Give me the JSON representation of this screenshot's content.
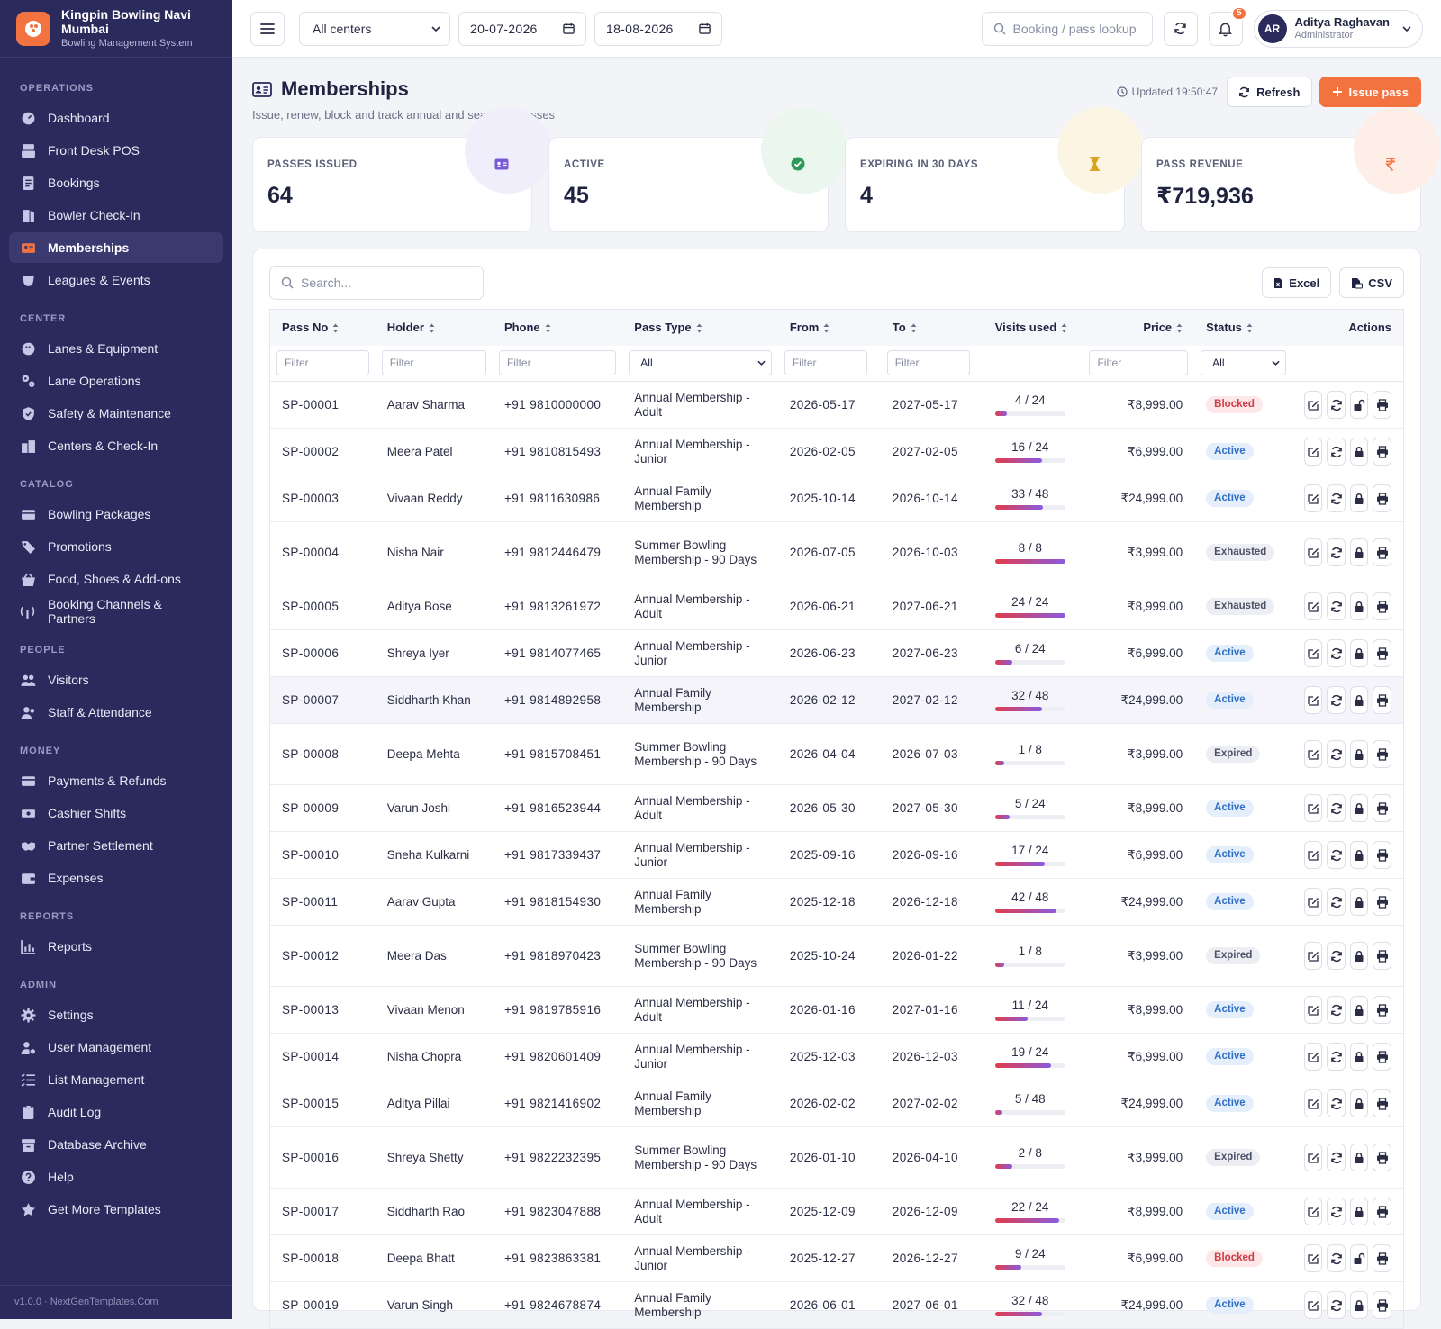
{
  "brand": {
    "name": "Kingpin Bowling Navi Mumbai",
    "subtitle": "Bowling Management System"
  },
  "sidebar": {
    "sections": [
      {
        "title": "OPERATIONS",
        "items": [
          {
            "label": "Dashboard",
            "icon": "dashboard-icon"
          },
          {
            "label": "Front Desk POS",
            "icon": "pos-icon"
          },
          {
            "label": "Bookings",
            "icon": "bookings-icon"
          },
          {
            "label": "Bowler Check-In",
            "icon": "checkin-icon"
          },
          {
            "label": "Memberships",
            "icon": "membership-icon",
            "active": true
          },
          {
            "label": "Leagues & Events",
            "icon": "leagues-icon"
          }
        ]
      },
      {
        "title": "CENTER",
        "items": [
          {
            "label": "Lanes & Equipment",
            "icon": "lanes-icon"
          },
          {
            "label": "Lane Operations",
            "icon": "gears-icon"
          },
          {
            "label": "Safety & Maintenance",
            "icon": "shield-icon"
          },
          {
            "label": "Centers & Check-In",
            "icon": "centers-icon"
          }
        ]
      },
      {
        "title": "CATALOG",
        "items": [
          {
            "label": "Bowling Packages",
            "icon": "packages-icon"
          },
          {
            "label": "Promotions",
            "icon": "tag-icon"
          },
          {
            "label": "Food, Shoes & Add-ons",
            "icon": "basket-icon"
          },
          {
            "label": "Booking Channels & Partners",
            "icon": "broadcast-icon"
          }
        ]
      },
      {
        "title": "PEOPLE",
        "items": [
          {
            "label": "Visitors",
            "icon": "visitors-icon"
          },
          {
            "label": "Staff & Attendance",
            "icon": "staff-icon"
          }
        ]
      },
      {
        "title": "MONEY",
        "items": [
          {
            "label": "Payments & Refunds",
            "icon": "card-icon"
          },
          {
            "label": "Cashier Shifts",
            "icon": "cash-icon"
          },
          {
            "label": "Partner Settlement",
            "icon": "handshake-icon"
          },
          {
            "label": "Expenses",
            "icon": "wallet-icon"
          }
        ]
      },
      {
        "title": "REPORTS",
        "items": [
          {
            "label": "Reports",
            "icon": "chart-icon"
          }
        ]
      },
      {
        "title": "ADMIN",
        "items": [
          {
            "label": "Settings",
            "icon": "gear-icon"
          },
          {
            "label": "User Management",
            "icon": "user-gear-icon"
          },
          {
            "label": "List Management",
            "icon": "list-icon"
          },
          {
            "label": "Audit Log",
            "icon": "clipboard-icon"
          },
          {
            "label": "Database Archive",
            "icon": "archive-icon"
          },
          {
            "label": "Help",
            "icon": "help-icon"
          },
          {
            "label": "Get More Templates",
            "icon": "star-icon"
          }
        ]
      }
    ],
    "footer": "v1.0.0 · NextGenTemplates.Com"
  },
  "topbar": {
    "center_select": "All centers",
    "date_from": "20-07-2026",
    "date_to": "18-08-2026",
    "search_placeholder": "Booking / pass lookup",
    "notifications_count": "5",
    "user": {
      "initials": "AR",
      "name": "Aditya Raghavan",
      "role": "Administrator"
    }
  },
  "page": {
    "title": "Memberships",
    "subtitle": "Issue, renew, block and track annual and seasonal passes",
    "updated": "Updated 19:50:47",
    "refresh_label": "Refresh",
    "issue_label": "Issue pass"
  },
  "stats": [
    {
      "label": "PASSES ISSUED",
      "value": "64",
      "icon": "id-card-icon",
      "color": "#7a5bd6",
      "tint": "#f1eefb"
    },
    {
      "label": "ACTIVE",
      "value": "45",
      "icon": "check-circle-icon",
      "color": "#2e9a57",
      "tint": "#ebf6ef"
    },
    {
      "label": "EXPIRING IN 30 DAYS",
      "value": "4",
      "icon": "hourglass-icon",
      "color": "#d9a320",
      "tint": "#fcf5e4"
    },
    {
      "label": "PASS REVENUE",
      "value": "₹719,936",
      "icon": "rupee-icon",
      "color": "#f27240",
      "tint": "#fdefe8"
    }
  ],
  "table": {
    "search_placeholder": "Search...",
    "excel_label": "Excel",
    "csv_label": "CSV",
    "columns": [
      "Pass No",
      "Holder",
      "Phone",
      "Pass Type",
      "From",
      "To",
      "Visits used",
      "Price",
      "Status",
      "Actions"
    ],
    "filter_placeholder": "Filter",
    "select_all": "All",
    "rows": [
      {
        "pass": "SP-00001",
        "holder": "Aarav Sharma",
        "phone": "+91 9810000000",
        "type": "Annual Membership - Adult",
        "from": "2026-05-17",
        "to": "2027-05-17",
        "visits": "4 / 24",
        "used": 4,
        "total": 24,
        "price": "₹8,999.00",
        "status": "Blocked"
      },
      {
        "pass": "SP-00002",
        "holder": "Meera Patel",
        "phone": "+91 9810815493",
        "type": "Annual Membership - Junior",
        "from": "2026-02-05",
        "to": "2027-02-05",
        "visits": "16 / 24",
        "used": 16,
        "total": 24,
        "price": "₹6,999.00",
        "status": "Active"
      },
      {
        "pass": "SP-00003",
        "holder": "Vivaan Reddy",
        "phone": "+91 9811630986",
        "type": "Annual Family Membership",
        "from": "2025-10-14",
        "to": "2026-10-14",
        "visits": "33 / 48",
        "used": 33,
        "total": 48,
        "price": "₹24,999.00",
        "status": "Active"
      },
      {
        "pass": "SP-00004",
        "holder": "Nisha Nair",
        "phone": "+91 9812446479",
        "type": "Summer Bowling Membership - 90 Days",
        "from": "2026-07-05",
        "to": "2026-10-03",
        "visits": "8 / 8",
        "used": 8,
        "total": 8,
        "price": "₹3,999.00",
        "status": "Exhausted"
      },
      {
        "pass": "SP-00005",
        "holder": "Aditya Bose",
        "phone": "+91 9813261972",
        "type": "Annual Membership - Adult",
        "from": "2026-06-21",
        "to": "2027-06-21",
        "visits": "24 / 24",
        "used": 24,
        "total": 24,
        "price": "₹8,999.00",
        "status": "Exhausted"
      },
      {
        "pass": "SP-00006",
        "holder": "Shreya Iyer",
        "phone": "+91 9814077465",
        "type": "Annual Membership - Junior",
        "from": "2026-06-23",
        "to": "2027-06-23",
        "visits": "6 / 24",
        "used": 6,
        "total": 24,
        "price": "₹6,999.00",
        "status": "Active"
      },
      {
        "pass": "SP-00007",
        "holder": "Siddharth Khan",
        "phone": "+91 9814892958",
        "type": "Annual Family Membership",
        "from": "2026-02-12",
        "to": "2027-02-12",
        "visits": "32 / 48",
        "used": 32,
        "total": 48,
        "price": "₹24,999.00",
        "status": "Active",
        "highlight": true
      },
      {
        "pass": "SP-00008",
        "holder": "Deepa Mehta",
        "phone": "+91 9815708451",
        "type": "Summer Bowling Membership - 90 Days",
        "from": "2026-04-04",
        "to": "2026-07-03",
        "visits": "1 / 8",
        "used": 1,
        "total": 8,
        "price": "₹3,999.00",
        "status": "Expired"
      },
      {
        "pass": "SP-00009",
        "holder": "Varun Joshi",
        "phone": "+91 9816523944",
        "type": "Annual Membership - Adult",
        "from": "2026-05-30",
        "to": "2027-05-30",
        "visits": "5 / 24",
        "used": 5,
        "total": 24,
        "price": "₹8,999.00",
        "status": "Active"
      },
      {
        "pass": "SP-00010",
        "holder": "Sneha Kulkarni",
        "phone": "+91 9817339437",
        "type": "Annual Membership - Junior",
        "from": "2025-09-16",
        "to": "2026-09-16",
        "visits": "17 / 24",
        "used": 17,
        "total": 24,
        "price": "₹6,999.00",
        "status": "Active"
      },
      {
        "pass": "SP-00011",
        "holder": "Aarav Gupta",
        "phone": "+91 9818154930",
        "type": "Annual Family Membership",
        "from": "2025-12-18",
        "to": "2026-12-18",
        "visits": "42 / 48",
        "used": 42,
        "total": 48,
        "price": "₹24,999.00",
        "status": "Active"
      },
      {
        "pass": "SP-00012",
        "holder": "Meera Das",
        "phone": "+91 9818970423",
        "type": "Summer Bowling Membership - 90 Days",
        "from": "2025-10-24",
        "to": "2026-01-22",
        "visits": "1 / 8",
        "used": 1,
        "total": 8,
        "price": "₹3,999.00",
        "status": "Expired"
      },
      {
        "pass": "SP-00013",
        "holder": "Vivaan Menon",
        "phone": "+91 9819785916",
        "type": "Annual Membership - Adult",
        "from": "2026-01-16",
        "to": "2027-01-16",
        "visits": "11 / 24",
        "used": 11,
        "total": 24,
        "price": "₹8,999.00",
        "status": "Active"
      },
      {
        "pass": "SP-00014",
        "holder": "Nisha Chopra",
        "phone": "+91 9820601409",
        "type": "Annual Membership - Junior",
        "from": "2025-12-03",
        "to": "2026-12-03",
        "visits": "19 / 24",
        "used": 19,
        "total": 24,
        "price": "₹6,999.00",
        "status": "Active"
      },
      {
        "pass": "SP-00015",
        "holder": "Aditya Pillai",
        "phone": "+91 9821416902",
        "type": "Annual Family Membership",
        "from": "2026-02-02",
        "to": "2027-02-02",
        "visits": "5 / 48",
        "used": 5,
        "total": 48,
        "price": "₹24,999.00",
        "status": "Active"
      },
      {
        "pass": "SP-00016",
        "holder": "Shreya Shetty",
        "phone": "+91 9822232395",
        "type": "Summer Bowling Membership - 90 Days",
        "from": "2026-01-10",
        "to": "2026-04-10",
        "visits": "2 / 8",
        "used": 2,
        "total": 8,
        "price": "₹3,999.00",
        "status": "Expired"
      },
      {
        "pass": "SP-00017",
        "holder": "Siddharth Rao",
        "phone": "+91 9823047888",
        "type": "Annual Membership - Adult",
        "from": "2025-12-09",
        "to": "2026-12-09",
        "visits": "22 / 24",
        "used": 22,
        "total": 24,
        "price": "₹8,999.00",
        "status": "Active"
      },
      {
        "pass": "SP-00018",
        "holder": "Deepa Bhatt",
        "phone": "+91 9823863381",
        "type": "Annual Membership - Junior",
        "from": "2025-12-27",
        "to": "2026-12-27",
        "visits": "9 / 24",
        "used": 9,
        "total": 24,
        "price": "₹6,999.00",
        "status": "Blocked"
      },
      {
        "pass": "SP-00019",
        "holder": "Varun Singh",
        "phone": "+91 9824678874",
        "type": "Annual Family Membership",
        "from": "2026-06-01",
        "to": "2027-06-01",
        "visits": "32 / 48",
        "used": 32,
        "total": 48,
        "price": "₹24,999.00",
        "status": "Active"
      }
    ]
  }
}
